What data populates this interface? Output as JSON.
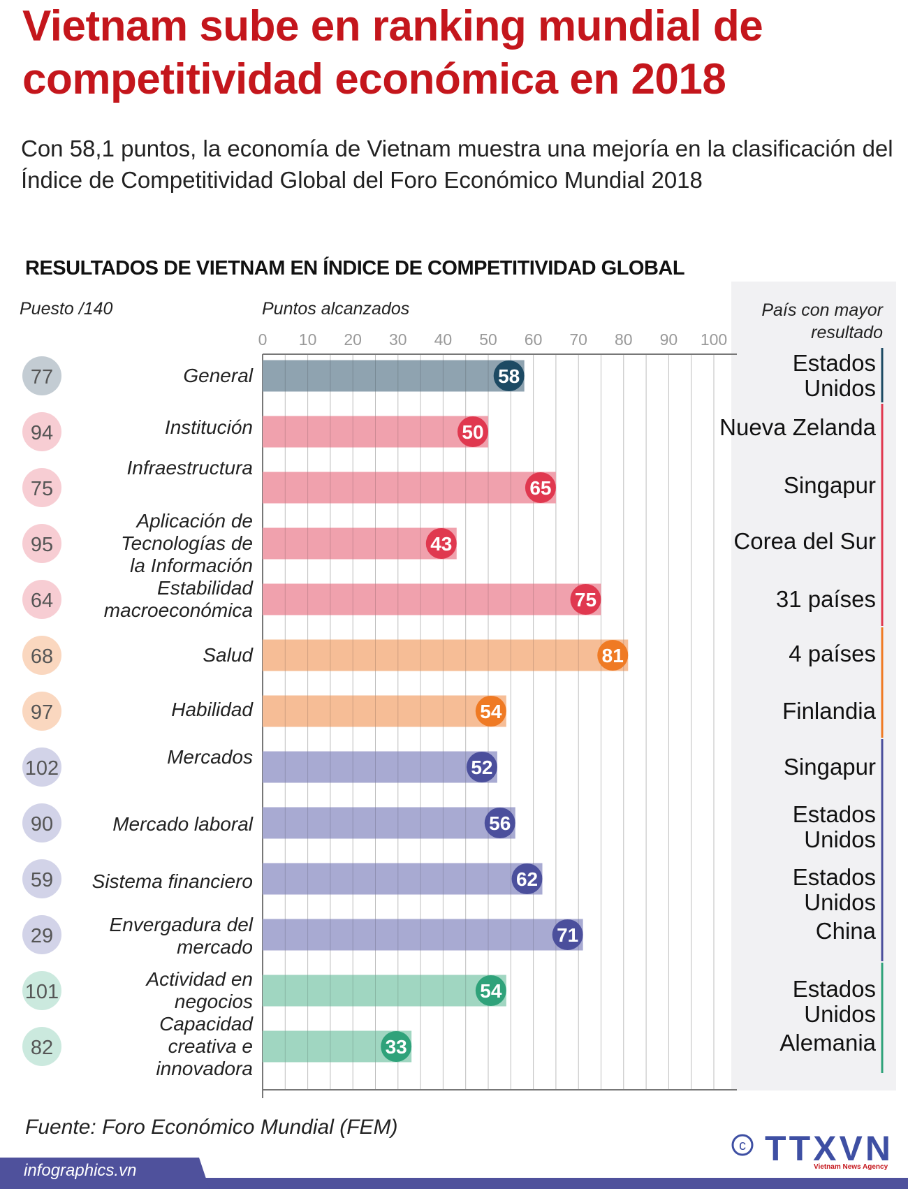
{
  "title_lines": [
    "Vietnam sube en ranking mundial de",
    "competitividad económica en 2018"
  ],
  "subtitle": "Con 58,1 puntos, la economía de Vietnam muestra una mejoría en la clasificación del Índice de Competitividad Global del Foro Económico Mundial 2018",
  "section_title": "RESULTADOS DE VIETNAM EN ÍNDICE DE COMPETITIVIDAD GLOBAL",
  "headers": {
    "rank": "Puesto /140",
    "points": "Puntos alcanzados",
    "country_line1": "País con mayor",
    "country_line2": "resultado"
  },
  "colors": {
    "general": {
      "bar": "#8fa3b0",
      "dot": "#1d4a63",
      "rank": "#c3ccd3"
    },
    "pink": {
      "bar": "#f0a1ad",
      "dot": "#e0384f",
      "rank": "#f7cdd3"
    },
    "orange": {
      "bar": "#f6bd96",
      "dot": "#ef7a24",
      "rank": "#fad7bf"
    },
    "purple": {
      "bar": "#a8aad2",
      "dot": "#4b4f9c",
      "rank": "#d2d3e8"
    },
    "green": {
      "bar": "#a0d6c1",
      "dot": "#2fa27a",
      "rank": "#cbe9de"
    }
  },
  "chart_data": {
    "type": "bar",
    "orientation": "horizontal",
    "xlabel": "Puntos alcanzados",
    "xlim": [
      0,
      100
    ],
    "xticks": [
      0,
      10,
      20,
      30,
      40,
      50,
      60,
      70,
      80,
      90,
      100
    ],
    "grid": true,
    "rows": [
      {
        "label": [
          "General"
        ],
        "rank": 77,
        "value": 58,
        "group": "general",
        "country": [
          "Estados",
          "Unidos"
        ]
      },
      {
        "label": [
          "Institución"
        ],
        "rank": 94,
        "value": 50,
        "group": "pink",
        "country": [
          "Nueva Zelanda"
        ]
      },
      {
        "label": [
          "Infraestructura"
        ],
        "rank": 75,
        "value": 65,
        "group": "pink",
        "country": [
          "Singapur"
        ]
      },
      {
        "label": [
          "Aplicación de",
          "Tecnologías de",
          "la Información"
        ],
        "rank": 95,
        "value": 43,
        "group": "pink",
        "country": [
          "Corea del Sur"
        ]
      },
      {
        "label": [
          "Estabilidad",
          "macroeconómica"
        ],
        "rank": 64,
        "value": 75,
        "group": "pink",
        "country": [
          "31 países"
        ]
      },
      {
        "label": [
          "Salud"
        ],
        "rank": 68,
        "value": 81,
        "group": "orange",
        "country": [
          "4 países"
        ]
      },
      {
        "label": [
          "Habilidad"
        ],
        "rank": 97,
        "value": 54,
        "group": "orange",
        "country": [
          "Finlandia"
        ]
      },
      {
        "label": [
          "Mercados"
        ],
        "rank": 102,
        "value": 52,
        "group": "purple",
        "country": [
          "Singapur"
        ]
      },
      {
        "label": [
          "Mercado laboral"
        ],
        "rank": 90,
        "value": 56,
        "group": "purple",
        "country": [
          "Estados",
          "Unidos"
        ]
      },
      {
        "label": [
          "Sistema financiero"
        ],
        "rank": 59,
        "value": 62,
        "group": "purple",
        "country": [
          "Estados",
          "Unidos"
        ]
      },
      {
        "label": [
          "Envergadura del",
          "mercado"
        ],
        "rank": 29,
        "value": 71,
        "group": "purple",
        "country": [
          "China"
        ]
      },
      {
        "label": [
          "Actividad en",
          "negocios"
        ],
        "rank": 101,
        "value": 54,
        "group": "green",
        "country": [
          "Estados",
          "Unidos"
        ]
      },
      {
        "label": [
          "Capacidad",
          "creativa e",
          "innovadora"
        ],
        "rank": 82,
        "value": 33,
        "group": "green",
        "country": [
          "Alemania"
        ]
      }
    ]
  },
  "source": "Fuente: Foro Económico Mundial (FEM)",
  "footer": {
    "site": "infographics.vn",
    "logo_text": "TTXVN",
    "logo_sub": "Vietnam News Agency",
    "copyright": "©"
  }
}
